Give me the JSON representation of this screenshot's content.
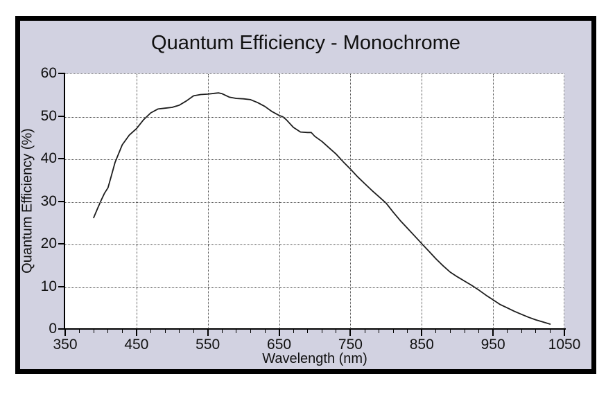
{
  "title": "Quantum Efficiency - Monochrome",
  "colors": {
    "page_bg": "#ffffff",
    "frame_bg": "#d2d2e1",
    "frame_border": "#000000",
    "plot_bg": "#ffffff",
    "gridline": "#4a4a4a",
    "plot_edge": "#7a7a7a",
    "axis": "#000000",
    "text": "#101010",
    "curve": "#1c1c1c"
  },
  "chart_data": {
    "type": "line",
    "title": "Quantum Efficiency - Monochrome",
    "xlabel": "Wavelength (nm)",
    "ylabel": "Quantum Efficiency (%)",
    "xlim": [
      350,
      1050
    ],
    "ylim": [
      0,
      60
    ],
    "x_ticks": [
      350,
      450,
      550,
      650,
      750,
      850,
      950,
      1050
    ],
    "x_minor_tick_step": 20,
    "y_ticks": [
      0,
      10,
      20,
      30,
      40,
      50,
      60
    ],
    "grid": "dotted",
    "legend": false,
    "series": [
      {
        "name": "monochrome-quantum-efficiency",
        "color": "#1c1c1c",
        "points": [
          [
            390,
            26.3
          ],
          [
            395,
            28.3
          ],
          [
            400,
            30.2
          ],
          [
            405,
            32.0
          ],
          [
            410,
            33.3
          ],
          [
            415,
            36.3
          ],
          [
            420,
            39.3
          ],
          [
            430,
            43.4
          ],
          [
            440,
            45.7
          ],
          [
            450,
            47.2
          ],
          [
            460,
            49.3
          ],
          [
            465,
            50.1
          ],
          [
            470,
            50.9
          ],
          [
            480,
            51.8
          ],
          [
            490,
            52.0
          ],
          [
            500,
            52.2
          ],
          [
            510,
            52.7
          ],
          [
            520,
            53.7
          ],
          [
            530,
            54.9
          ],
          [
            540,
            55.2
          ],
          [
            550,
            55.3
          ],
          [
            560,
            55.5
          ],
          [
            565,
            55.6
          ],
          [
            570,
            55.4
          ],
          [
            580,
            54.6
          ],
          [
            590,
            54.3
          ],
          [
            600,
            54.2
          ],
          [
            610,
            54.0
          ],
          [
            620,
            53.3
          ],
          [
            630,
            52.4
          ],
          [
            640,
            51.2
          ],
          [
            650,
            50.3
          ],
          [
            655,
            50.0
          ],
          [
            660,
            49.3
          ],
          [
            670,
            47.5
          ],
          [
            680,
            46.4
          ],
          [
            690,
            46.3
          ],
          [
            695,
            46.3
          ],
          [
            700,
            45.4
          ],
          [
            710,
            44.2
          ],
          [
            720,
            42.7
          ],
          [
            730,
            41.2
          ],
          [
            740,
            39.4
          ],
          [
            750,
            37.7
          ],
          [
            760,
            35.9
          ],
          [
            770,
            34.3
          ],
          [
            780,
            32.7
          ],
          [
            790,
            31.2
          ],
          [
            800,
            29.7
          ],
          [
            810,
            27.6
          ],
          [
            820,
            25.6
          ],
          [
            830,
            23.8
          ],
          [
            840,
            22.0
          ],
          [
            850,
            20.2
          ],
          [
            860,
            18.4
          ],
          [
            870,
            16.6
          ],
          [
            880,
            15.0
          ],
          [
            890,
            13.5
          ],
          [
            900,
            12.4
          ],
          [
            910,
            11.4
          ],
          [
            920,
            10.4
          ],
          [
            930,
            9.3
          ],
          [
            940,
            8.1
          ],
          [
            950,
            7.0
          ],
          [
            960,
            5.9
          ],
          [
            970,
            5.1
          ],
          [
            980,
            4.3
          ],
          [
            990,
            3.6
          ],
          [
            1000,
            2.9
          ],
          [
            1010,
            2.3
          ],
          [
            1020,
            1.8
          ],
          [
            1030,
            1.3
          ]
        ]
      }
    ]
  }
}
